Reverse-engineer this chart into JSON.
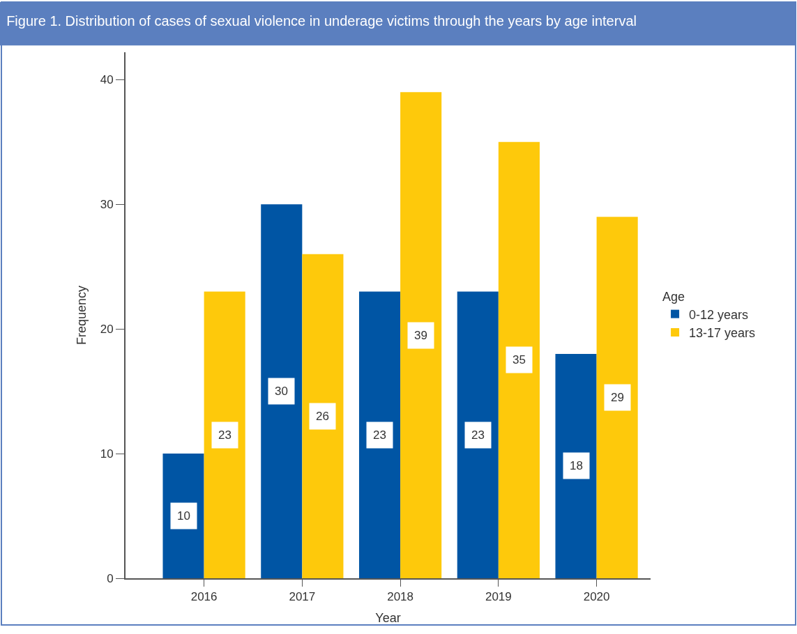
{
  "chart_data": {
    "type": "bar",
    "title": "Figure 1. Distribution of cases of sexual violence in underage victims through the years by age interval",
    "xlabel": "Year",
    "ylabel": "Frequency",
    "legend_title": "Age",
    "categories": [
      "2016",
      "2017",
      "2018",
      "2019",
      "2020"
    ],
    "series": [
      {
        "name": "0-12 years",
        "color": "#0055a4",
        "values": [
          10,
          30,
          23,
          23,
          18
        ]
      },
      {
        "name": "13-17 years",
        "color": "#fec90b",
        "values": [
          23,
          26,
          39,
          35,
          29
        ]
      }
    ],
    "ylim": [
      0,
      42.2
    ],
    "yticks": [
      0,
      10,
      20,
      30,
      40
    ],
    "data_labels": true,
    "legend": "right"
  }
}
